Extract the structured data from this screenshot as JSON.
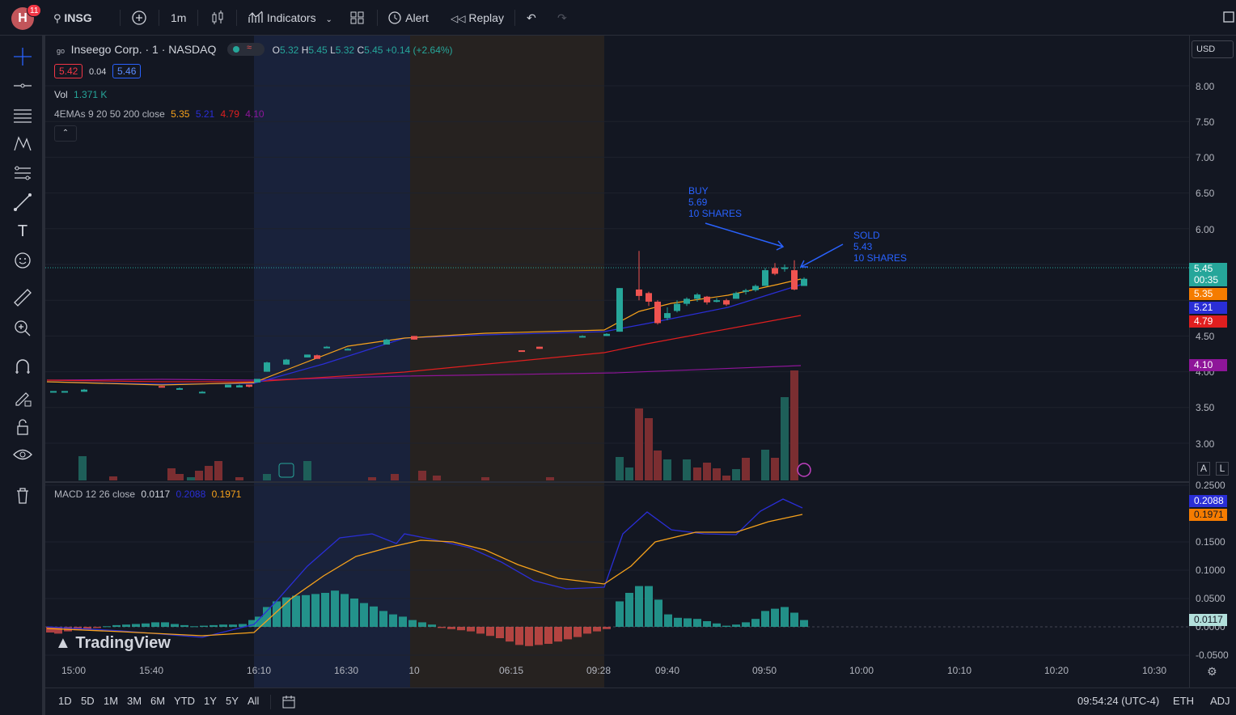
{
  "topbar": {
    "avatar_letter": "H",
    "notifications": "11",
    "symbol": "INSG",
    "interval": "1m",
    "indicators_label": "Indicators",
    "alert_label": "Alert",
    "replay_label": "Replay"
  },
  "legend": {
    "symbol_title": "Inseego Corp. · 1 · NASDAQ",
    "o_label": "O",
    "o_value": "5.32",
    "h_label": "H",
    "h_value": "5.45",
    "l_label": "L",
    "l_value": "5.32",
    "c_label": "C",
    "c_value": "5.45",
    "change": "+0.14 (+2.64%)",
    "bid": "5.42",
    "spread": "0.04",
    "ask": "5.46",
    "vol_label": "Vol",
    "vol_value": "1.371 K",
    "ema_label": "4EMAs 9 20 50 200 close",
    "ema_values": [
      "5.35",
      "5.21",
      "4.79",
      "4.10"
    ],
    "macd_label": "MACD 12 26 close",
    "macd_values": [
      "0.0117",
      "0.2088",
      "0.1971"
    ]
  },
  "currency": "USD",
  "price_axis": [
    "8.00",
    "7.50",
    "7.00",
    "6.50",
    "6.00",
    "4.50",
    "4.00",
    "3.50",
    "3.00"
  ],
  "price_tags": {
    "last": "5.45",
    "countdown": "00:35",
    "ema9": "5.35",
    "ema20": "5.21",
    "ema50": "4.79",
    "ema200": "4.10"
  },
  "macd_axis": [
    "0.2500",
    "0.1500",
    "0.1000",
    "0.0500",
    "0.0000",
    "-0.0500"
  ],
  "macd_tags": {
    "signal": "0.2088",
    "macd": "0.1971",
    "hist": "0.0117"
  },
  "time_axis": [
    "15:00",
    "15:40",
    "16:10",
    "16:30",
    "10",
    "06:15",
    "09:28",
    "09:40",
    "09:50",
    "10:00",
    "10:10",
    "10:20",
    "10:30"
  ],
  "annotations": {
    "buy": [
      "BUY",
      "5.69",
      "10 SHARES"
    ],
    "sold": [
      "SOLD",
      "5.43",
      "10 SHARES"
    ]
  },
  "watermark": "TradingView",
  "bottombar": {
    "ranges": [
      "1D",
      "5D",
      "1M",
      "3M",
      "6M",
      "YTD",
      "1Y",
      "5Y",
      "All"
    ],
    "clock": "09:54:24 (UTC-4)",
    "session": "ETH",
    "adj": "ADJ"
  },
  "scale_buttons": {
    "auto": "A",
    "log": "L"
  },
  "colors": {
    "up": "#26a69a",
    "down": "#ef5350",
    "ema9": "#f7a21b",
    "ema20": "#2a2ed6",
    "ema50": "#e01f1f",
    "ema200": "#8e1599",
    "macd": "#2a2ed6",
    "signal": "#f7a21b",
    "premarket_bg": "#1b2540",
    "postmarket_bg": "#2a2520"
  },
  "chart_data": {
    "type": "candlestick",
    "series": [
      {
        "name": "EMA 9",
        "last": 5.35
      },
      {
        "name": "EMA 20",
        "last": 5.21
      },
      {
        "name": "EMA 50",
        "last": 4.79
      },
      {
        "name": "EMA 200",
        "last": 4.1
      }
    ],
    "candles_last_session": [
      {
        "t": "09:30",
        "o": 4.6,
        "h": 5.25,
        "l": 4.6,
        "c": 5.2
      },
      {
        "t": "09:31",
        "o": 5.2,
        "h": 5.73,
        "l": 5.1,
        "c": 5.15
      },
      {
        "t": "09:32",
        "o": 5.15,
        "h": 5.2,
        "l": 5.0,
        "c": 5.05
      },
      {
        "t": "09:33",
        "o": 5.05,
        "h": 5.1,
        "l": 4.8,
        "c": 4.82
      },
      {
        "t": "09:40",
        "o": 4.9,
        "h": 5.1,
        "l": 4.85,
        "c": 5.05
      },
      {
        "t": "09:50",
        "o": 5.35,
        "h": 5.7,
        "l": 5.3,
        "c": 5.6
      },
      {
        "t": "09:52",
        "o": 5.6,
        "h": 5.72,
        "l": 5.2,
        "c": 5.3
      },
      {
        "t": "09:53",
        "o": 5.32,
        "h": 5.45,
        "l": 5.32,
        "c": 5.45
      }
    ],
    "ylim": [
      2.75,
      8.25
    ],
    "macd_ylim": [
      -0.06,
      0.26
    ]
  }
}
